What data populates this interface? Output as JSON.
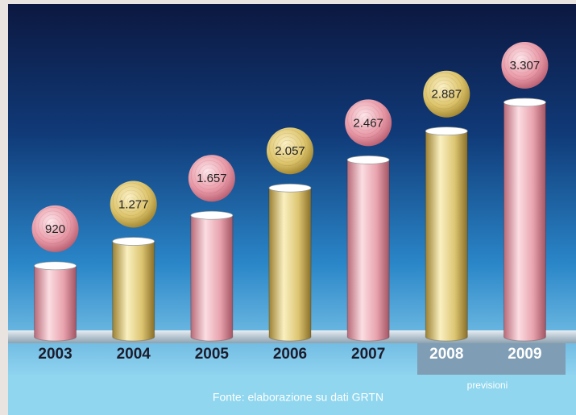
{
  "chart_data": {
    "type": "bar",
    "categories": [
      "2003",
      "2004",
      "2005",
      "2006",
      "2007",
      "2008",
      "2009"
    ],
    "values": [
      920,
      1277,
      1657,
      2057,
      2467,
      2887,
      3307
    ],
    "value_labels": [
      "920",
      "1.277",
      "1.657",
      "2.057",
      "2.467",
      "2.887",
      "3.307"
    ],
    "colors": [
      "pink",
      "gold",
      "pink",
      "gold",
      "pink",
      "gold",
      "pink"
    ],
    "forecast_note": "previsioni",
    "source": "Fonte: elaborazione su dati GRTN"
  }
}
